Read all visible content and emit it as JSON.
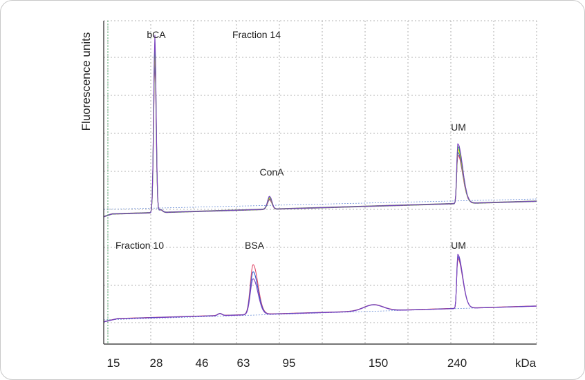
{
  "chart_data": {
    "type": "line",
    "ylabel": "Fluorescence units",
    "xunit": "kDa",
    "x_ticks": [
      "15",
      "28",
      "46",
      "63",
      "95",
      "150",
      "240"
    ],
    "grid": true,
    "colors": [
      "#e04a6a",
      "#2f57c9",
      "#f0d000",
      "#20b050",
      "#7a3fbf"
    ],
    "panels": [
      {
        "name": "Fraction 14",
        "peaks": [
          {
            "label": "bCA",
            "x": "28"
          },
          {
            "label": "ConA",
            "x": "~90"
          },
          {
            "label": "UM",
            "x": "240"
          }
        ]
      },
      {
        "name": "Fraction 10",
        "peaks": [
          {
            "label": "BSA",
            "x": "~70"
          },
          {
            "label": "UM",
            "x": "240"
          }
        ]
      }
    ]
  }
}
